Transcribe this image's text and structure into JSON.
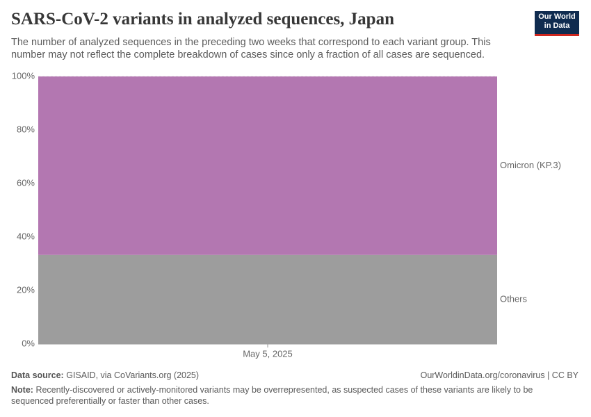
{
  "chart_data": {
    "type": "area",
    "stacked": true,
    "title": "SARS-CoV-2 variants in analyzed sequences, Japan",
    "subtitle": "The number of analyzed sequences in the preceding two weeks that correspond to each variant group. This number may not reflect the complete breakdown of cases since only a fraction of all cases are sequenced.",
    "x": [
      "May 5, 2025"
    ],
    "series": [
      {
        "name": "Others",
        "color": "#9d9d9d",
        "label_color": "#6e6e6e",
        "values": [
          33.3
        ]
      },
      {
        "name": "Omicron (KP.3)",
        "color": "#b377b1",
        "label_color": "#a24ea8",
        "values": [
          66.7
        ]
      }
    ],
    "ylim": [
      0,
      100
    ],
    "yticks": [
      {
        "value": 0,
        "label": "0%"
      },
      {
        "value": 20,
        "label": "20%"
      },
      {
        "value": 40,
        "label": "40%"
      },
      {
        "value": 60,
        "label": "60%"
      },
      {
        "value": 80,
        "label": "80%"
      },
      {
        "value": 100,
        "label": "100%"
      }
    ],
    "grid": true
  },
  "logo": [
    "Our World",
    "in Data"
  ],
  "footer": {
    "source_label": "Data source:",
    "source": "GISAID, via CoVariants.org (2025)",
    "url": "OurWorldinData.org/coronavirus | CC BY",
    "note_label": "Note:",
    "note": "Recently-discovered or actively-monitored variants may be overrepresented, as suspected cases of these variants are likely to be sequenced preferentially or faster than other cases."
  }
}
